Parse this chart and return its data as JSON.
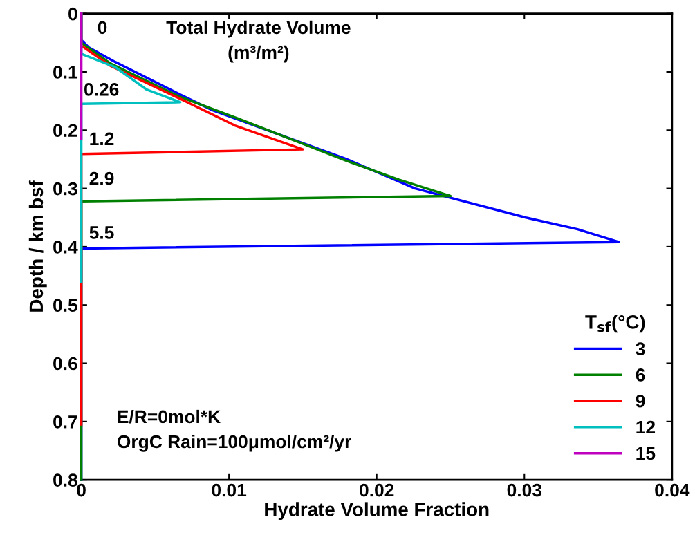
{
  "chart_data": {
    "type": "line",
    "xlabel": "Hydrate Volume Fraction",
    "ylabel": "Depth / km bsf",
    "legend_title": "T$_{sf}$(°C)",
    "legend": "bottom right",
    "grid": false,
    "line_style": "solid",
    "marker": "none",
    "xlim": [
      0,
      0.04
    ],
    "xticks": [
      0,
      0.01,
      0.02,
      0.03,
      0.04
    ],
    "ylim": [
      0.8,
      0
    ],
    "yticks": [
      0,
      0.1,
      0.2,
      0.3,
      0.4,
      0.5,
      0.6,
      0.7,
      0.8
    ],
    "series": [
      {
        "name": "3",
        "color": "#0000ff",
        "x": [
          0,
          0,
          0.0005,
          0.0023,
          0.0067,
          0.0089,
          0.0179,
          0.0226,
          0.0301,
          0.0336,
          0.0364,
          0,
          0
        ],
        "values": [
          0,
          0.045,
          0.058,
          0.083,
          0.139,
          0.166,
          0.249,
          0.3,
          0.35,
          0.37,
          0.392,
          0.403,
          0.8
        ]
      },
      {
        "name": "6",
        "color": "#008000",
        "x": [
          0,
          0,
          0.002,
          0.0066,
          0.0106,
          0.0179,
          0.0215,
          0.025,
          0,
          0
        ],
        "values": [
          0,
          0.05,
          0.086,
          0.142,
          0.18,
          0.252,
          0.285,
          0.313,
          0.322,
          0.8
        ]
      },
      {
        "name": "9",
        "color": "#ff0000",
        "x": [
          0,
          0,
          0.002,
          0.0066,
          0.0104,
          0.015,
          0,
          0
        ],
        "values": [
          0,
          0.055,
          0.09,
          0.145,
          0.192,
          0.233,
          0.241,
          0.705
        ]
      },
      {
        "name": "12",
        "color": "#00bfbf",
        "x": [
          0,
          0,
          0.0023,
          0.0044,
          0.0067,
          0,
          0
        ],
        "values": [
          0,
          0.069,
          0.092,
          0.13,
          0.152,
          0.155,
          0.46
        ]
      },
      {
        "name": "15",
        "color": "#bf00bf",
        "x": [
          0,
          0
        ],
        "values": [
          0,
          0.215
        ]
      }
    ],
    "annotations": [
      "Total Hydrate Volume\n(m³/m²)",
      "E/R=0mol*K\nOrgC Rain=100μmol/cm²/yr",
      "0",
      "0.26",
      "1.2",
      "2.9",
      "5.5"
    ]
  }
}
